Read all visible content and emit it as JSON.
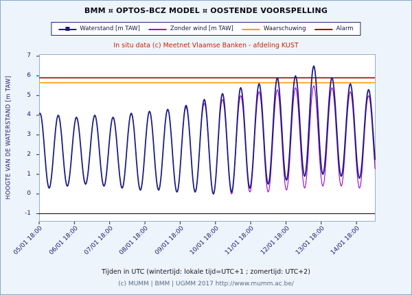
{
  "title": "BMM ¤ OPTOS-BCZ MODEL ¤ OOSTENDE VOORSPELLING",
  "subtitle": "In situ data (c) Meetnet Vlaamse Banken - afdeling KUST",
  "footer": {
    "line1": "Tijden in UTC (wintertijd: lokale tijd=UTC+1 ; zomertijd: UTC+2)",
    "line2": "(c) MUMM | BMM | UGMM 2017 http://www.mumm.ac.be/"
  },
  "legend": [
    {
      "label": "Waterstand [m TAW]",
      "color": "#1c1c84",
      "marker": "square"
    },
    {
      "label": "Zonder wind [m TAW]",
      "color": "#9900cc",
      "marker": "none"
    },
    {
      "label": "Waarschuwing",
      "color": "#ff9900",
      "marker": "none"
    },
    {
      "label": "Alarm",
      "color": "#990000",
      "marker": "none"
    }
  ],
  "chart_data": {
    "type": "line",
    "title": "BMM ¤ OPTOS-BCZ MODEL ¤ OOSTENDE VOORSPELLING",
    "subtitle": "In situ data (c) Meetnet Vlaamse Banken - afdeling KUST",
    "xlabel": "",
    "ylabel": "HOOGTE VAN DE WATERSTAND [m TAW]",
    "ylim": [
      -1.4,
      7.1
    ],
    "xlim_hours": [
      0,
      229
    ],
    "x_note": "t = hours after 05/01 18:00 UTC; series stored as tidal extremes [t, value_m_TAW]",
    "grid": false,
    "legend_position": "top",
    "y_ticks": [
      7,
      6,
      5,
      4,
      3,
      2,
      1,
      0,
      -1
    ],
    "x_ticks": [
      {
        "t": 0,
        "label": "05/01 18:00"
      },
      {
        "t": 24,
        "label": "06/01 18:00"
      },
      {
        "t": 48,
        "label": "07/01 18:00"
      },
      {
        "t": 72,
        "label": "08/01 18:00"
      },
      {
        "t": 96,
        "label": "09/01 18:00"
      },
      {
        "t": 120,
        "label": "10/01 18:00"
      },
      {
        "t": 144,
        "label": "11/01 18:00"
      },
      {
        "t": 168,
        "label": "12/01 18:00"
      },
      {
        "t": 192,
        "label": "13/01 18:00"
      },
      {
        "t": 216,
        "label": "14/01 18:00"
      }
    ],
    "thresholds": [
      {
        "name": "Waarschuwing",
        "value": 5.65,
        "color": "#ff9900"
      },
      {
        "name": "Alarm",
        "value": 5.9,
        "color": "#990000"
      }
    ],
    "axis_line": {
      "value": -1,
      "color": "#000000"
    },
    "series": [
      {
        "name": "Zonder wind [m TAW]",
        "color": "#9900cc",
        "width": 1.1,
        "extremes": [
          [
            -5.6,
            0.3
          ],
          [
            0.6,
            4.1
          ],
          [
            6.8,
            0.3
          ],
          [
            13.0,
            4.0
          ],
          [
            19.2,
            0.4
          ],
          [
            25.4,
            3.9
          ],
          [
            31.6,
            0.5
          ],
          [
            37.9,
            4.0
          ],
          [
            44.1,
            0.4
          ],
          [
            50.3,
            3.9
          ],
          [
            56.5,
            0.3
          ],
          [
            62.7,
            4.1
          ],
          [
            68.9,
            0.2
          ],
          [
            75.1,
            4.2
          ],
          [
            81.3,
            0.2
          ],
          [
            87.5,
            4.3
          ],
          [
            93.8,
            0.1
          ],
          [
            100.0,
            4.4
          ],
          [
            106.2,
            0.1
          ],
          [
            112.4,
            4.6
          ],
          [
            118.6,
            0.0
          ],
          [
            124.8,
            4.8
          ],
          [
            131.0,
            0.0
          ],
          [
            137.2,
            5.0
          ],
          [
            143.4,
            0.1
          ],
          [
            149.7,
            5.2
          ],
          [
            155.9,
            0.1
          ],
          [
            162.1,
            5.3
          ],
          [
            168.3,
            0.2
          ],
          [
            174.5,
            5.4
          ],
          [
            180.7,
            0.3
          ],
          [
            186.9,
            5.5
          ],
          [
            193.1,
            0.4
          ],
          [
            199.3,
            5.4
          ],
          [
            205.6,
            0.4
          ],
          [
            211.8,
            5.2
          ],
          [
            218.0,
            0.3
          ],
          [
            224.2,
            5.0
          ],
          [
            230.4,
            0.4
          ]
        ]
      },
      {
        "name": "Waterstand [m TAW]",
        "color": "#1c1c84",
        "width": 1.8,
        "extremes": [
          [
            -5.6,
            0.3
          ],
          [
            0.6,
            4.1
          ],
          [
            6.8,
            0.3
          ],
          [
            13.0,
            4.0
          ],
          [
            19.2,
            0.4
          ],
          [
            25.4,
            3.9
          ],
          [
            31.6,
            0.5
          ],
          [
            37.9,
            4.0
          ],
          [
            44.1,
            0.4
          ],
          [
            50.3,
            3.9
          ],
          [
            56.5,
            0.3
          ],
          [
            62.7,
            4.1
          ],
          [
            68.9,
            0.2
          ],
          [
            75.1,
            4.2
          ],
          [
            81.3,
            0.2
          ],
          [
            87.5,
            4.3
          ],
          [
            93.8,
            0.1
          ],
          [
            100.0,
            4.5
          ],
          [
            106.2,
            0.1
          ],
          [
            112.4,
            4.8
          ],
          [
            118.6,
            0.0
          ],
          [
            124.8,
            5.1
          ],
          [
            131.0,
            0.1
          ],
          [
            137.2,
            5.4
          ],
          [
            143.4,
            0.3
          ],
          [
            149.7,
            5.6
          ],
          [
            155.9,
            0.5
          ],
          [
            162.1,
            5.9
          ],
          [
            168.3,
            0.7
          ],
          [
            174.5,
            6.0
          ],
          [
            180.7,
            0.9
          ],
          [
            186.9,
            6.5
          ],
          [
            193.1,
            1.0
          ],
          [
            199.3,
            5.9
          ],
          [
            205.6,
            0.9
          ],
          [
            211.8,
            5.6
          ],
          [
            218.0,
            0.8
          ],
          [
            224.2,
            5.3
          ],
          [
            230.4,
            0.9
          ]
        ]
      }
    ]
  }
}
